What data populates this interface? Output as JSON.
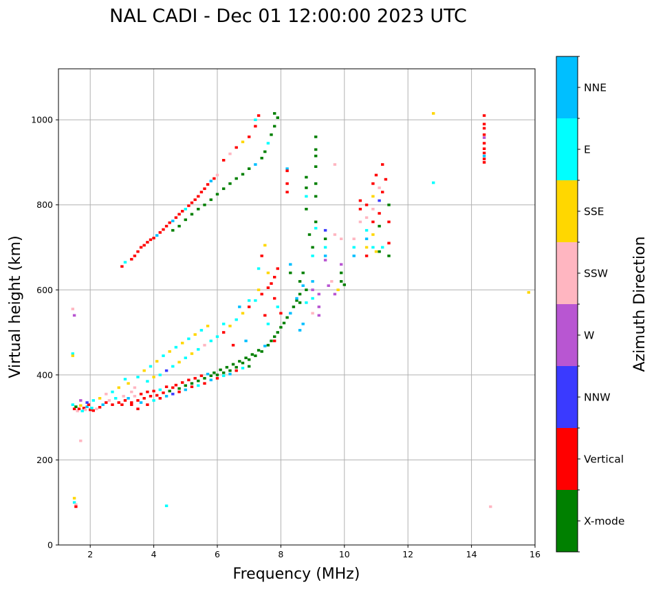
{
  "chart_data": {
    "type": "scatter",
    "title": "NAL CADI - Dec 01 12:00:00 2023 UTC",
    "xlabel": "Frequency (MHz)",
    "ylabel": "Virtual height (km)",
    "xlim": [
      1,
      16
    ],
    "ylim": [
      0,
      1120
    ],
    "xticks": [
      2,
      4,
      6,
      8,
      10,
      12,
      14,
      16
    ],
    "yticks": [
      0,
      200,
      400,
      600,
      800,
      1000
    ],
    "grid": true,
    "colorbar": {
      "label": "Azimuth Direction",
      "placement": "right",
      "categories": [
        {
          "name": "X-mode",
          "color": "#008000"
        },
        {
          "name": "Vertical",
          "color": "#ff0000"
        },
        {
          "name": "NNW",
          "color": "#3a3aff"
        },
        {
          "name": "W",
          "color": "#b856d2"
        },
        {
          "name": "SSW",
          "color": "#ffb6c1"
        },
        {
          "name": "SSE",
          "color": "#ffd700"
        },
        {
          "name": "E",
          "color": "#00ffff"
        },
        {
          "name": "NNE",
          "color": "#00bfff"
        }
      ]
    },
    "cell": {
      "df_mhz": 0.1,
      "dh_km": 6
    },
    "points": [
      [
        1.45,
        330,
        6
      ],
      [
        1.5,
        320,
        1
      ],
      [
        1.55,
        325,
        0
      ],
      [
        1.6,
        315,
        4
      ],
      [
        1.65,
        320,
        1
      ],
      [
        1.7,
        328,
        5
      ],
      [
        1.75,
        315,
        6
      ],
      [
        1.8,
        322,
        1
      ],
      [
        1.85,
        318,
        4
      ],
      [
        1.9,
        325,
        7
      ],
      [
        1.95,
        330,
        1
      ],
      [
        2.0,
        318,
        1
      ],
      [
        2.05,
        322,
        6
      ],
      [
        2.1,
        316,
        1
      ],
      [
        2.2,
        320,
        4
      ],
      [
        2.3,
        324,
        1
      ],
      [
        2.4,
        330,
        7
      ],
      [
        2.5,
        335,
        1
      ],
      [
        2.6,
        340,
        4
      ],
      [
        2.7,
        330,
        1
      ],
      [
        2.8,
        345,
        6
      ],
      [
        2.9,
        335,
        1
      ],
      [
        3.0,
        330,
        1
      ],
      [
        3.05,
        350,
        4
      ],
      [
        3.1,
        340,
        1
      ],
      [
        3.2,
        345,
        7
      ],
      [
        3.3,
        335,
        1
      ],
      [
        3.4,
        350,
        4
      ],
      [
        3.5,
        340,
        1
      ],
      [
        3.6,
        355,
        1
      ],
      [
        3.7,
        345,
        1
      ],
      [
        3.8,
        360,
        1
      ],
      [
        3.9,
        350,
        1
      ],
      [
        4.0,
        362,
        1
      ],
      [
        4.1,
        352,
        1
      ],
      [
        4.2,
        365,
        6
      ],
      [
        4.3,
        358,
        1
      ],
      [
        4.4,
        372,
        1
      ],
      [
        4.5,
        362,
        0
      ],
      [
        4.6,
        370,
        1
      ],
      [
        4.7,
        376,
        1
      ],
      [
        4.8,
        368,
        0
      ],
      [
        4.9,
        382,
        1
      ],
      [
        5.0,
        375,
        0
      ],
      [
        5.1,
        388,
        1
      ],
      [
        5.2,
        380,
        0
      ],
      [
        5.3,
        392,
        1
      ],
      [
        5.4,
        386,
        0
      ],
      [
        5.5,
        398,
        1
      ],
      [
        5.6,
        392,
        0
      ],
      [
        5.7,
        402,
        7
      ],
      [
        5.8,
        398,
        0
      ],
      [
        5.9,
        405,
        0
      ],
      [
        6.0,
        400,
        0
      ],
      [
        6.1,
        412,
        0
      ],
      [
        6.2,
        405,
        0
      ],
      [
        6.3,
        418,
        0
      ],
      [
        6.4,
        410,
        0
      ],
      [
        6.5,
        425,
        0
      ],
      [
        6.6,
        418,
        0
      ],
      [
        6.7,
        432,
        0
      ],
      [
        6.8,
        428,
        0
      ],
      [
        6.9,
        440,
        0
      ],
      [
        7.0,
        436,
        0
      ],
      [
        7.1,
        448,
        0
      ],
      [
        7.2,
        445,
        0
      ],
      [
        7.3,
        458,
        0
      ],
      [
        7.4,
        455,
        0
      ],
      [
        7.5,
        468,
        7
      ],
      [
        7.6,
        470,
        0
      ],
      [
        7.7,
        480,
        0
      ],
      [
        7.8,
        490,
        0
      ],
      [
        7.9,
        500,
        0
      ],
      [
        8.0,
        512,
        0
      ],
      [
        8.1,
        522,
        0
      ],
      [
        8.2,
        535,
        0
      ],
      [
        8.3,
        545,
        7
      ],
      [
        8.4,
        560,
        0
      ],
      [
        8.5,
        575,
        0
      ],
      [
        8.6,
        590,
        0
      ],
      [
        8.6,
        620,
        0
      ],
      [
        8.7,
        640,
        0
      ],
      [
        8.7,
        610,
        7
      ],
      [
        3.3,
        330,
        1
      ],
      [
        3.5,
        320,
        1
      ],
      [
        3.6,
        335,
        7
      ],
      [
        3.8,
        330,
        1
      ],
      [
        4.0,
        340,
        6
      ],
      [
        4.2,
        345,
        1
      ],
      [
        4.4,
        350,
        7
      ],
      [
        4.6,
        355,
        2
      ],
      [
        4.8,
        360,
        1
      ],
      [
        5.0,
        365,
        7
      ],
      [
        5.2,
        372,
        1
      ],
      [
        5.4,
        375,
        6
      ],
      [
        5.6,
        380,
        1
      ],
      [
        5.8,
        388,
        7
      ],
      [
        6.0,
        392,
        1
      ],
      [
        6.2,
        398,
        6
      ],
      [
        6.4,
        402,
        7
      ],
      [
        6.6,
        410,
        1
      ],
      [
        6.8,
        416,
        6
      ],
      [
        7.0,
        420,
        0
      ],
      [
        3.2,
        380,
        5
      ],
      [
        3.5,
        395,
        6
      ],
      [
        3.7,
        410,
        5
      ],
      [
        3.9,
        420,
        6
      ],
      [
        4.1,
        432,
        5
      ],
      [
        4.3,
        445,
        6
      ],
      [
        4.5,
        455,
        5
      ],
      [
        4.7,
        465,
        6
      ],
      [
        4.9,
        475,
        5
      ],
      [
        5.1,
        485,
        6
      ],
      [
        5.3,
        495,
        5
      ],
      [
        5.5,
        505,
        6
      ],
      [
        5.7,
        515,
        5
      ],
      [
        3.4,
        370,
        4
      ],
      [
        3.8,
        385,
        6
      ],
      [
        4.0,
        395,
        5
      ],
      [
        4.2,
        400,
        6
      ],
      [
        4.4,
        410,
        2
      ],
      [
        4.6,
        420,
        6
      ],
      [
        4.8,
        430,
        5
      ],
      [
        5.0,
        440,
        6
      ],
      [
        5.2,
        450,
        5
      ],
      [
        5.4,
        460,
        6
      ],
      [
        5.6,
        470,
        4
      ],
      [
        5.8,
        480,
        6
      ],
      [
        6.0,
        490,
        6
      ],
      [
        6.2,
        500,
        1
      ],
      [
        6.4,
        515,
        5
      ],
      [
        6.6,
        530,
        6
      ],
      [
        6.8,
        545,
        5
      ],
      [
        7.0,
        560,
        1
      ],
      [
        7.2,
        575,
        6
      ],
      [
        7.4,
        590,
        1
      ],
      [
        7.6,
        605,
        1
      ],
      [
        7.8,
        630,
        1
      ],
      [
        7.9,
        650,
        1
      ],
      [
        3.1,
        390,
        6
      ],
      [
        3.3,
        360,
        4
      ],
      [
        2.9,
        370,
        5
      ],
      [
        2.7,
        360,
        6
      ],
      [
        2.5,
        355,
        4
      ],
      [
        2.3,
        345,
        5
      ],
      [
        2.1,
        340,
        6
      ],
      [
        1.9,
        335,
        2
      ],
      [
        1.7,
        340,
        3
      ],
      [
        6.2,
        520,
        6
      ],
      [
        6.7,
        560,
        7
      ],
      [
        7.0,
        575,
        6
      ],
      [
        7.3,
        600,
        5
      ],
      [
        7.5,
        540,
        1
      ],
      [
        7.6,
        520,
        6
      ],
      [
        7.8,
        480,
        1
      ],
      [
        6.5,
        470,
        1
      ],
      [
        6.9,
        480,
        7
      ],
      [
        3.0,
        655,
        1
      ],
      [
        3.1,
        665,
        6
      ],
      [
        3.3,
        672,
        1
      ],
      [
        3.4,
        680,
        1
      ],
      [
        3.5,
        690,
        1
      ],
      [
        3.6,
        700,
        1
      ],
      [
        3.7,
        705,
        1
      ],
      [
        3.8,
        712,
        1
      ],
      [
        3.9,
        718,
        1
      ],
      [
        4.0,
        722,
        1
      ],
      [
        4.1,
        728,
        7
      ],
      [
        4.2,
        735,
        1
      ],
      [
        4.3,
        742,
        1
      ],
      [
        4.4,
        750,
        1
      ],
      [
        4.5,
        758,
        1
      ],
      [
        4.6,
        762,
        7
      ],
      [
        4.7,
        770,
        1
      ],
      [
        4.8,
        778,
        1
      ],
      [
        4.9,
        785,
        1
      ],
      [
        5.0,
        790,
        6
      ],
      [
        5.1,
        798,
        1
      ],
      [
        5.2,
        805,
        1
      ],
      [
        5.3,
        812,
        1
      ],
      [
        5.4,
        820,
        1
      ],
      [
        5.5,
        830,
        1
      ],
      [
        5.6,
        838,
        1
      ],
      [
        5.7,
        848,
        1
      ],
      [
        5.8,
        856,
        7
      ],
      [
        5.9,
        862,
        1
      ],
      [
        6.0,
        870,
        4
      ],
      [
        6.2,
        905,
        1
      ],
      [
        6.4,
        920,
        4
      ],
      [
        6.6,
        935,
        1
      ],
      [
        6.8,
        948,
        5
      ],
      [
        7.0,
        960,
        1
      ],
      [
        7.2,
        985,
        1
      ],
      [
        7.3,
        1010,
        1
      ],
      [
        4.6,
        740,
        0
      ],
      [
        4.8,
        750,
        0
      ],
      [
        5.0,
        765,
        0
      ],
      [
        5.2,
        778,
        0
      ],
      [
        5.4,
        790,
        0
      ],
      [
        5.6,
        800,
        0
      ],
      [
        5.8,
        812,
        0
      ],
      [
        6.0,
        825,
        0
      ],
      [
        6.2,
        838,
        0
      ],
      [
        6.4,
        850,
        0
      ],
      [
        6.6,
        862,
        0
      ],
      [
        6.8,
        872,
        0
      ],
      [
        7.0,
        885,
        0
      ],
      [
        7.2,
        895,
        7
      ],
      [
        7.4,
        910,
        0
      ],
      [
        7.5,
        925,
        0
      ],
      [
        7.6,
        945,
        6
      ],
      [
        7.7,
        965,
        0
      ],
      [
        7.8,
        985,
        0
      ],
      [
        7.9,
        1005,
        0
      ],
      [
        7.2,
        1000,
        6
      ],
      [
        7.8,
        1015,
        0
      ],
      [
        8.2,
        885,
        7
      ],
      [
        8.2,
        880,
        1
      ],
      [
        8.2,
        850,
        1
      ],
      [
        8.2,
        830,
        1
      ],
      [
        8.8,
        865,
        0
      ],
      [
        8.8,
        840,
        0
      ],
      [
        8.8,
        820,
        6
      ],
      [
        8.8,
        790,
        0
      ],
      [
        8.9,
        730,
        0
      ],
      [
        9.0,
        700,
        0
      ],
      [
        9.0,
        680,
        6
      ],
      [
        9.1,
        960,
        0
      ],
      [
        9.1,
        930,
        0
      ],
      [
        9.1,
        915,
        0
      ],
      [
        9.1,
        890,
        0
      ],
      [
        9.1,
        850,
        0
      ],
      [
        9.1,
        820,
        0
      ],
      [
        9.1,
        760,
        0
      ],
      [
        9.1,
        745,
        6
      ],
      [
        9.4,
        740,
        2
      ],
      [
        9.4,
        720,
        0
      ],
      [
        9.4,
        700,
        6
      ],
      [
        9.4,
        680,
        7
      ],
      [
        9.4,
        670,
        3
      ],
      [
        9.7,
        730,
        4
      ],
      [
        9.7,
        895,
        4
      ],
      [
        9.9,
        720,
        4
      ],
      [
        9.9,
        660,
        3
      ],
      [
        9.9,
        640,
        0
      ],
      [
        9.9,
        620,
        0
      ],
      [
        10.0,
        612,
        0
      ],
      [
        9.8,
        600,
        5
      ],
      [
        9.7,
        590,
        3
      ],
      [
        8.3,
        660,
        7
      ],
      [
        8.3,
        640,
        0
      ],
      [
        8.5,
        580,
        7
      ],
      [
        8.6,
        570,
        0
      ],
      [
        8.8,
        600,
        0
      ],
      [
        8.8,
        570,
        6
      ],
      [
        9.0,
        620,
        7
      ],
      [
        9.0,
        600,
        3
      ],
      [
        9.0,
        580,
        6
      ],
      [
        9.2,
        590,
        3
      ],
      [
        9.2,
        560,
        3
      ],
      [
        9.2,
        540,
        3
      ],
      [
        9.0,
        545,
        4
      ],
      [
        8.7,
        520,
        7
      ],
      [
        8.6,
        505,
        7
      ],
      [
        9.5,
        610,
        3
      ],
      [
        9.6,
        620,
        4
      ],
      [
        10.3,
        680,
        7
      ],
      [
        10.3,
        700,
        6
      ],
      [
        10.3,
        720,
        4
      ],
      [
        10.5,
        760,
        4
      ],
      [
        10.5,
        790,
        1
      ],
      [
        10.5,
        810,
        1
      ],
      [
        10.7,
        800,
        1
      ],
      [
        10.7,
        770,
        4
      ],
      [
        10.7,
        740,
        6
      ],
      [
        10.7,
        720,
        7
      ],
      [
        10.7,
        700,
        5
      ],
      [
        10.7,
        680,
        1
      ],
      [
        10.9,
        850,
        1
      ],
      [
        10.9,
        820,
        5
      ],
      [
        10.9,
        790,
        4
      ],
      [
        10.9,
        760,
        1
      ],
      [
        10.9,
        730,
        5
      ],
      [
        10.9,
        700,
        6
      ],
      [
        11.0,
        690,
        5
      ],
      [
        11.0,
        870,
        1
      ],
      [
        11.1,
        840,
        4
      ],
      [
        11.1,
        810,
        2
      ],
      [
        11.1,
        780,
        1
      ],
      [
        11.1,
        750,
        0
      ],
      [
        11.1,
        690,
        0
      ],
      [
        11.2,
        830,
        1
      ],
      [
        11.2,
        700,
        6
      ],
      [
        11.3,
        860,
        1
      ],
      [
        11.4,
        800,
        0
      ],
      [
        11.4,
        760,
        1
      ],
      [
        11.4,
        710,
        1
      ],
      [
        11.2,
        895,
        1
      ],
      [
        11.4,
        680,
        0
      ],
      [
        7.5,
        705,
        5
      ],
      [
        7.3,
        650,
        6
      ],
      [
        7.4,
        680,
        1
      ],
      [
        7.6,
        640,
        5
      ],
      [
        7.7,
        615,
        1
      ],
      [
        7.8,
        580,
        1
      ],
      [
        7.9,
        560,
        6
      ],
      [
        8.0,
        545,
        1
      ],
      [
        12.8,
        1015,
        5
      ],
      [
        12.8,
        852,
        6
      ],
      [
        14.4,
        1010,
        1
      ],
      [
        14.4,
        990,
        1
      ],
      [
        14.4,
        980,
        1
      ],
      [
        14.4,
        965,
        1
      ],
      [
        14.4,
        958,
        3
      ],
      [
        14.4,
        945,
        1
      ],
      [
        14.4,
        932,
        1
      ],
      [
        14.4,
        922,
        1
      ],
      [
        14.4,
        915,
        7
      ],
      [
        14.4,
        908,
        1
      ],
      [
        14.4,
        900,
        1
      ],
      [
        15.8,
        594,
        5
      ],
      [
        14.6,
        90,
        4
      ],
      [
        4.4,
        92,
        6
      ],
      [
        1.45,
        555,
        4
      ],
      [
        1.5,
        540,
        3
      ],
      [
        1.45,
        450,
        6
      ],
      [
        1.45,
        445,
        5
      ],
      [
        1.5,
        110,
        5
      ],
      [
        1.5,
        100,
        6
      ],
      [
        1.55,
        95,
        4
      ],
      [
        1.55,
        90,
        1
      ],
      [
        1.7,
        245,
        4
      ]
    ]
  }
}
